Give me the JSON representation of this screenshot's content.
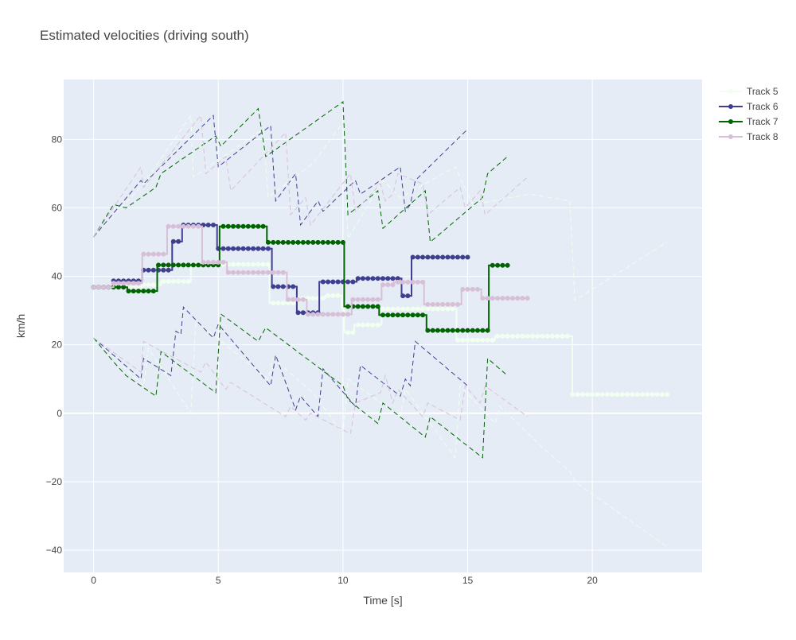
{
  "chart_data": {
    "type": "line",
    "title": "Estimated velocities (driving south)",
    "xlabel": "Time [s]",
    "ylabel": "km/h",
    "xlim": [
      -1.2,
      24.4
    ],
    "ylim": [
      -46.5,
      97.5
    ],
    "xticks": [
      0,
      5,
      10,
      15,
      20
    ],
    "yticks": [
      -40,
      -20,
      0,
      20,
      40,
      60,
      80
    ],
    "xtick_labels": [
      "0",
      "5",
      "10",
      "15",
      "20"
    ],
    "ytick_labels": [
      "−40",
      "−20",
      "0",
      "20",
      "40",
      "60",
      "80"
    ],
    "grid": true,
    "legend_position": "top-right outside",
    "background_color": "#e5ecf6",
    "series": [
      {
        "name": "Track 5",
        "color": "#f0fff0",
        "mode": "lines+markers",
        "steps": [
          [
            0,
            36.8
          ],
          [
            1.95,
            37.5
          ],
          [
            2.7,
            38.5
          ],
          [
            3.9,
            43.5
          ],
          [
            7.05,
            32.2
          ],
          [
            8.15,
            33.6
          ],
          [
            9.3,
            34.4
          ],
          [
            9.95,
            31.1
          ],
          [
            10.05,
            23.6
          ],
          [
            10.45,
            25.8
          ],
          [
            11.55,
            30.5
          ],
          [
            14.55,
            21.4
          ],
          [
            16.1,
            22.5
          ],
          [
            19.2,
            5.5
          ],
          [
            23.0,
            5.5
          ]
        ],
        "dt": 0.2,
        "upper_bound": [
          [
            0,
            51.5
          ],
          [
            2.0,
            67.0
          ],
          [
            3.9,
            87.0
          ],
          [
            4.0,
            69.0
          ],
          [
            6.8,
            83.0
          ],
          [
            7.0,
            63.0
          ],
          [
            8.8,
            73.0
          ],
          [
            10.0,
            85.0
          ],
          [
            10.2,
            51.0
          ],
          [
            11.6,
            68.0
          ],
          [
            12.3,
            63.0
          ],
          [
            14.5,
            72.0
          ],
          [
            15.2,
            61.0
          ],
          [
            17.5,
            64.0
          ],
          [
            19.1,
            62.0
          ],
          [
            19.3,
            33.0
          ],
          [
            23.0,
            50.0
          ]
        ],
        "lower_bound": [
          [
            0,
            22.0
          ],
          [
            2.0,
            8.0
          ],
          [
            2.2,
            19.0
          ],
          [
            3.9,
            0.0
          ],
          [
            4.1,
            27.0
          ],
          [
            7.0,
            10.0
          ],
          [
            7.2,
            16.0
          ],
          [
            8.8,
            6.0
          ],
          [
            10.0,
            -6.0
          ],
          [
            10.2,
            10.0
          ],
          [
            12.3,
            -1.0
          ],
          [
            12.5,
            7.0
          ],
          [
            14.5,
            -13.0
          ],
          [
            14.7,
            8.0
          ],
          [
            16.1,
            -3.0
          ],
          [
            16.3,
            2.0
          ],
          [
            18.0,
            -10.0
          ],
          [
            19.1,
            -17.0
          ],
          [
            19.3,
            -20.0
          ],
          [
            23.0,
            -39.0
          ]
        ]
      },
      {
        "name": "Track 6",
        "color": "#3f3f8f",
        "mode": "lines+markers",
        "steps": [
          [
            0,
            36.8
          ],
          [
            0.8,
            38.7
          ],
          [
            1.95,
            41.8
          ],
          [
            3.15,
            50.2
          ],
          [
            3.55,
            55.0
          ],
          [
            4.95,
            48.1
          ],
          [
            7.15,
            37.0
          ],
          [
            8.15,
            29.4
          ],
          [
            9.05,
            38.4
          ],
          [
            10.55,
            39.4
          ],
          [
            12.35,
            34.3
          ],
          [
            12.75,
            45.6
          ],
          [
            15.0,
            45.6
          ]
        ],
        "dt": 0.2,
        "upper_bound": [
          [
            0,
            51.5
          ],
          [
            1.9,
            68.0
          ],
          [
            2.0,
            67.0
          ],
          [
            4.8,
            87.0
          ],
          [
            5.0,
            72.0
          ],
          [
            7.1,
            84.0
          ],
          [
            7.3,
            62.0
          ],
          [
            8.1,
            70.0
          ],
          [
            8.3,
            55.0
          ],
          [
            9.0,
            62.0
          ],
          [
            9.2,
            59.0
          ],
          [
            10.5,
            68.0
          ],
          [
            10.7,
            64.0
          ],
          [
            12.3,
            72.0
          ],
          [
            12.5,
            59.0
          ],
          [
            12.7,
            61.0
          ],
          [
            12.9,
            68.0
          ],
          [
            15.0,
            83.0
          ]
        ],
        "lower_bound": [
          [
            0,
            22.0
          ],
          [
            1.9,
            10.0
          ],
          [
            2.0,
            16.0
          ],
          [
            3.1,
            11.0
          ],
          [
            3.3,
            24.0
          ],
          [
            3.5,
            23.0
          ],
          [
            3.6,
            31.0
          ],
          [
            4.8,
            22.0
          ],
          [
            5.0,
            26.0
          ],
          [
            7.1,
            8.0
          ],
          [
            7.3,
            17.0
          ],
          [
            8.1,
            1.0
          ],
          [
            8.3,
            5.0
          ],
          [
            9.0,
            -1.0
          ],
          [
            9.2,
            13.0
          ],
          [
            10.5,
            2.0
          ],
          [
            10.7,
            14.0
          ],
          [
            12.3,
            5.0
          ],
          [
            12.5,
            10.0
          ],
          [
            12.7,
            8.0
          ],
          [
            12.9,
            21.0
          ],
          [
            15.0,
            8.0
          ]
        ]
      },
      {
        "name": "Track 7",
        "color": "#006400",
        "mode": "lines+markers",
        "steps": [
          [
            0,
            36.8
          ],
          [
            0.8,
            36.8
          ],
          [
            1.35,
            35.7
          ],
          [
            2.55,
            43.3
          ],
          [
            5.05,
            54.6
          ],
          [
            6.95,
            49.9
          ],
          [
            10.05,
            31.2
          ],
          [
            11.45,
            28.7
          ],
          [
            13.35,
            24.2
          ],
          [
            15.85,
            43.2
          ],
          [
            16.6,
            43.2
          ]
        ],
        "dt": 0.2,
        "upper_bound": [
          [
            0,
            51.5
          ],
          [
            0.8,
            61.0
          ],
          [
            1.3,
            60.0
          ],
          [
            2.5,
            66.0
          ],
          [
            2.7,
            70.0
          ],
          [
            4.9,
            81.0
          ],
          [
            5.1,
            78.0
          ],
          [
            6.6,
            89.0
          ],
          [
            6.9,
            75.0
          ],
          [
            10.0,
            91.0
          ],
          [
            10.2,
            58.0
          ],
          [
            11.4,
            65.0
          ],
          [
            11.6,
            54.0
          ],
          [
            13.3,
            65.0
          ],
          [
            13.5,
            50.0
          ],
          [
            15.6,
            63.0
          ],
          [
            15.8,
            70.0
          ],
          [
            16.6,
            75.0
          ]
        ],
        "lower_bound": [
          [
            0,
            22.0
          ],
          [
            0.8,
            15.0
          ],
          [
            1.3,
            11.0
          ],
          [
            2.5,
            5.0
          ],
          [
            2.7,
            18.0
          ],
          [
            4.9,
            6.0
          ],
          [
            5.1,
            29.0
          ],
          [
            6.6,
            21.0
          ],
          [
            6.9,
            25.0
          ],
          [
            10.0,
            8.0
          ],
          [
            10.2,
            4.0
          ],
          [
            11.4,
            -3.0
          ],
          [
            11.6,
            3.0
          ],
          [
            13.3,
            -7.0
          ],
          [
            13.5,
            -1.0
          ],
          [
            15.6,
            -13.0
          ],
          [
            15.8,
            16.0
          ],
          [
            16.6,
            11.0
          ]
        ]
      },
      {
        "name": "Track 8",
        "color": "#d8bfd8",
        "mode": "lines+markers",
        "steps": [
          [
            0,
            36.8
          ],
          [
            0.8,
            38.0
          ],
          [
            1.95,
            46.5
          ],
          [
            2.95,
            54.6
          ],
          [
            4.35,
            44.1
          ],
          [
            5.35,
            41.1
          ],
          [
            7.75,
            33.2
          ],
          [
            8.55,
            28.9
          ],
          [
            10.35,
            33.2
          ],
          [
            11.55,
            37.5
          ],
          [
            12.05,
            38.3
          ],
          [
            13.25,
            31.8
          ],
          [
            14.75,
            36.2
          ],
          [
            15.55,
            33.6
          ],
          [
            17.4,
            33.6
          ]
        ],
        "dt": 0.2,
        "upper_bound": [
          [
            0,
            51.5
          ],
          [
            1.9,
            72.0
          ],
          [
            2.0,
            66.0
          ],
          [
            4.3,
            87.0
          ],
          [
            4.5,
            70.0
          ],
          [
            5.3,
            75.0
          ],
          [
            5.5,
            65.0
          ],
          [
            7.7,
            82.0
          ],
          [
            7.9,
            58.0
          ],
          [
            8.5,
            63.0
          ],
          [
            8.7,
            55.0
          ],
          [
            10.3,
            70.0
          ],
          [
            10.5,
            59.0
          ],
          [
            11.5,
            67.0
          ],
          [
            11.7,
            62.0
          ],
          [
            12.0,
            64.0
          ],
          [
            12.2,
            70.0
          ],
          [
            13.2,
            67.0
          ],
          [
            13.4,
            58.0
          ],
          [
            14.7,
            66.0
          ],
          [
            14.9,
            60.0
          ],
          [
            15.5,
            65.0
          ],
          [
            15.7,
            58.0
          ],
          [
            17.4,
            69.0
          ]
        ],
        "lower_bound": [
          [
            0,
            22.0
          ],
          [
            1.9,
            12.0
          ],
          [
            2.0,
            21.0
          ],
          [
            4.3,
            12.0
          ],
          [
            4.5,
            15.0
          ],
          [
            5.3,
            7.0
          ],
          [
            5.5,
            9.0
          ],
          [
            7.7,
            -1.0
          ],
          [
            7.9,
            2.0
          ],
          [
            8.5,
            -2.0
          ],
          [
            8.7,
            0.0
          ],
          [
            10.3,
            -6.0
          ],
          [
            10.5,
            3.0
          ],
          [
            11.5,
            6.0
          ],
          [
            11.7,
            11.0
          ],
          [
            12.0,
            3.0
          ],
          [
            12.2,
            7.0
          ],
          [
            13.2,
            -1.0
          ],
          [
            13.4,
            3.0
          ],
          [
            14.7,
            -2.0
          ],
          [
            14.9,
            8.0
          ],
          [
            15.5,
            3.0
          ],
          [
            15.7,
            8.0
          ],
          [
            17.4,
            -1.0
          ]
        ]
      }
    ]
  }
}
